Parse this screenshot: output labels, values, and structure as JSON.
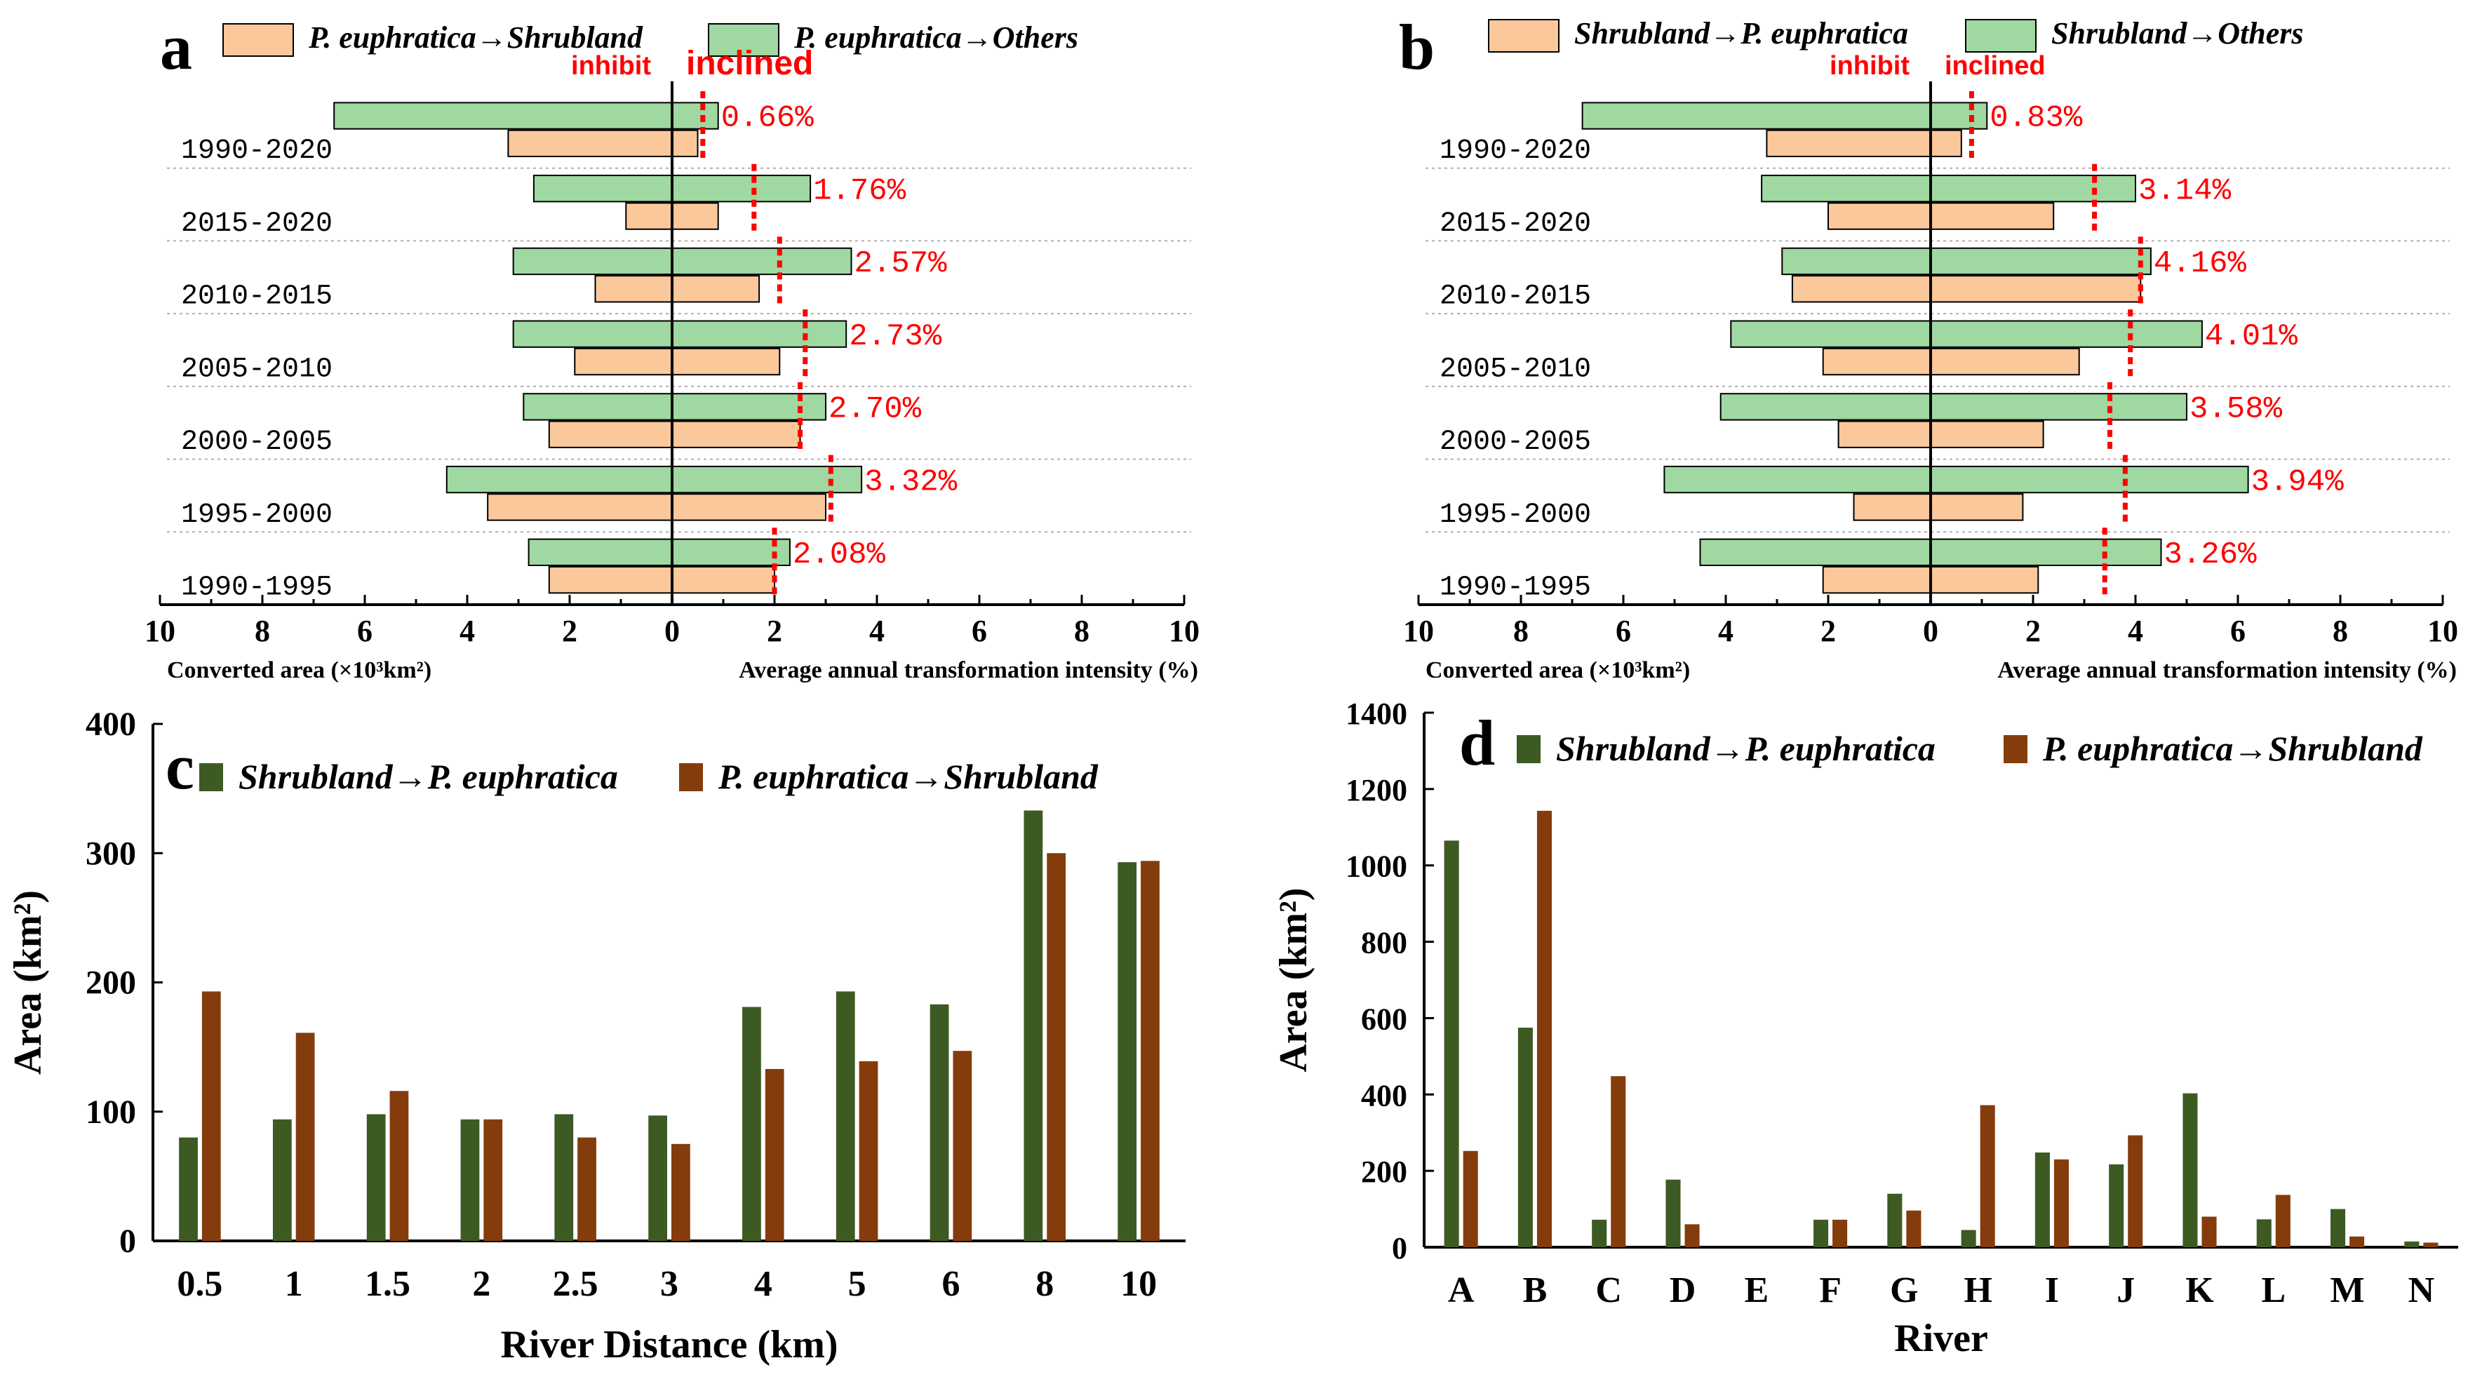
{
  "colors": {
    "pe_to_shrub_fill": "#fac89b",
    "others_fill": "#9fd8a0",
    "bar_green": "#3d5a23",
    "bar_brown": "#843c0c",
    "red": "#ff0000",
    "grid": "#b0b0b0"
  },
  "chart_data": [
    {
      "id": "a",
      "type": "bar",
      "orientation": "horizontal-back-to-back",
      "panel_label": "a",
      "legend": [
        "P. euphratica→Shrubland",
        "P. euphratica→Others"
      ],
      "inhibit_label": "inhibit",
      "inclined_label": "inclined",
      "categories": [
        "1990-2020",
        "2015-2020",
        "2010-2015",
        "2005-2010",
        "2000-2005",
        "1995-2000",
        "1990-1995"
      ],
      "series": [
        {
          "name": "P. euphratica→Others",
          "left": [
            6.6,
            2.7,
            3.1,
            3.1,
            2.9,
            4.4,
            2.8
          ],
          "right": [
            0.9,
            2.7,
            3.5,
            3.4,
            3.0,
            3.7,
            2.3
          ]
        },
        {
          "name": "P. euphratica→Shrubland",
          "left": [
            3.2,
            0.9,
            1.5,
            1.9,
            2.4,
            3.6,
            2.4
          ],
          "right": [
            0.5,
            0.9,
            1.7,
            2.1,
            2.5,
            3.0,
            2.0
          ]
        }
      ],
      "threshold": [
        0.6,
        1.6,
        2.1,
        2.6,
        2.5,
        3.1,
        2.0
      ],
      "threshold_labels": [
        "0.66%",
        "1.76%",
        "2.57%",
        "2.73%",
        "2.70%",
        "3.32%",
        "2.08%"
      ],
      "x_ticks": [
        "10",
        "8",
        "6",
        "4",
        "2",
        "0",
        "2",
        "4",
        "6",
        "8",
        "10"
      ],
      "xlim": [
        -10,
        10
      ],
      "xlabel_left": "Converted area (×10³km²)",
      "xlabel_right": "Average annual transformation intensity (%)"
    },
    {
      "id": "b",
      "type": "bar",
      "orientation": "horizontal-back-to-back",
      "panel_label": "b",
      "legend": [
        "Shrubland→P. euphratica",
        "Shrubland→Others"
      ],
      "inhibit_label": "inhibit",
      "inclined_label": "inclined",
      "categories": [
        "1990-2020",
        "2015-2020",
        "2010-2015",
        "2005-2010",
        "2000-2005",
        "1995-2000",
        "1990-1995"
      ],
      "series": [
        {
          "name": "Shrubland→Others",
          "left": [
            6.8,
            3.3,
            2.9,
            3.9,
            4.1,
            5.2,
            4.5
          ],
          "right": [
            1.1,
            4.0,
            4.3,
            5.3,
            5.0,
            6.2,
            4.5
          ]
        },
        {
          "name": "Shrubland→P. euphratica",
          "left": [
            3.2,
            2.0,
            2.7,
            2.1,
            1.8,
            1.5,
            2.1
          ],
          "right": [
            0.6,
            2.4,
            4.1,
            2.9,
            2.2,
            1.8,
            2.1
          ]
        }
      ],
      "threshold": [
        0.8,
        3.2,
        4.1,
        3.9,
        3.5,
        3.8,
        3.4
      ],
      "threshold_labels": [
        "0.83%",
        "3.14%",
        "4.16%",
        "4.01%",
        "3.58%",
        "3.94%",
        "3.26%"
      ],
      "x_ticks": [
        "10",
        "8",
        "6",
        "4",
        "2",
        "0",
        "2",
        "4",
        "6",
        "8",
        "10"
      ],
      "xlim": [
        -10,
        10
      ],
      "xlabel_left": "Converted area (×10³km²)",
      "xlabel_right": "Average annual transformation intensity (%)"
    },
    {
      "id": "c",
      "type": "bar",
      "panel_label": "c",
      "title": "",
      "categories": [
        "0.5",
        "1",
        "1.5",
        "2",
        "2.5",
        "3",
        "4",
        "5",
        "6",
        "8",
        "10"
      ],
      "series": [
        {
          "name": "Shrubland→P. euphratica",
          "values": [
            80,
            94,
            98,
            94,
            98,
            97,
            181,
            193,
            183,
            333,
            293
          ]
        },
        {
          "name": "P. euphratica→Shrubland",
          "values": [
            193,
            161,
            116,
            94,
            80,
            75,
            133,
            139,
            147,
            300,
            294
          ]
        }
      ],
      "y_ticks": [
        "0",
        "100",
        "200",
        "300",
        "400"
      ],
      "ylim": [
        0,
        400
      ],
      "xlabel": "River Distance (km)",
      "ylabel": "Area (km²)"
    },
    {
      "id": "d",
      "type": "bar",
      "panel_label": "d",
      "title": "",
      "categories": [
        "A",
        "B",
        "C",
        "D",
        "E",
        "F",
        "G",
        "H",
        "I",
        "J",
        "K",
        "L",
        "M",
        "N"
      ],
      "series": [
        {
          "name": "Shrubland→P. euphratica",
          "values": [
            1065,
            575,
            72,
            177,
            0,
            72,
            140,
            45,
            248,
            217,
            403,
            73,
            100,
            15
          ]
        },
        {
          "name": "P. euphratica→Shrubland",
          "values": [
            252,
            1143,
            448,
            60,
            0,
            72,
            96,
            372,
            230,
            293,
            80,
            137,
            28,
            12
          ]
        }
      ],
      "y_ticks": [
        "0",
        "200",
        "400",
        "600",
        "800",
        "1000",
        "1200",
        "1400"
      ],
      "ylim": [
        0,
        1400
      ],
      "xlabel": "River",
      "ylabel": "Area (km²)"
    }
  ]
}
